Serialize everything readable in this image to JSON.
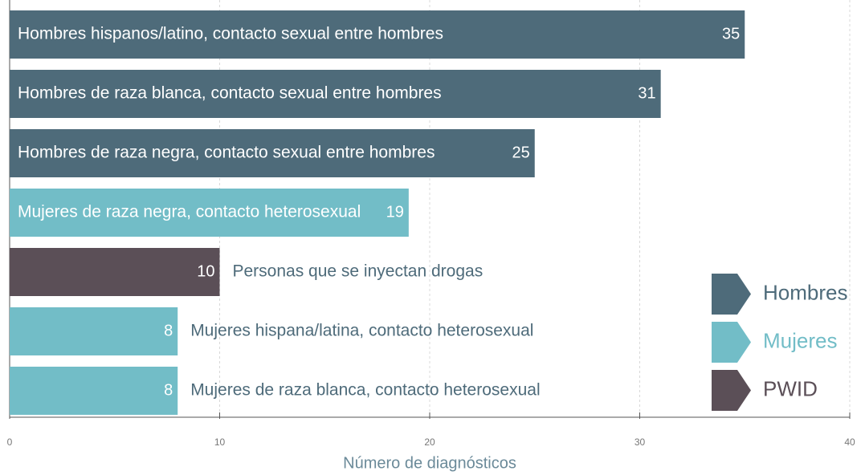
{
  "chart_data": {
    "type": "bar",
    "orientation": "horizontal",
    "categories": [
      "Hombres hispanos/latino, contacto sexual entre hombres",
      "Hombres de raza blanca, contacto sexual entre hombres",
      "Hombres de raza negra, contacto sexual entre hombres",
      "Mujeres de raza negra, contacto heterosexual",
      "Personas que se inyectan drogas",
      "Mujeres hispana/latina, contacto heterosexual",
      "Mujeres de raza blanca, contacto heterosexual"
    ],
    "values": [
      35,
      31,
      25,
      19,
      10,
      8,
      8
    ],
    "groups": [
      "Hombres",
      "Hombres",
      "Hombres",
      "Mujeres",
      "PWID",
      "Mujeres",
      "Mujeres"
    ],
    "legend": [
      {
        "name": "Hombres",
        "color": "#4e6b7a"
      },
      {
        "name": "Mujeres",
        "color": "#72bdc7"
      },
      {
        "name": "PWID",
        "color": "#5b4f57"
      }
    ],
    "xlabel": "Número de diagnósticos",
    "xlim": [
      0,
      40
    ],
    "xticks": [
      0,
      10,
      20,
      30,
      40
    ],
    "grid": true
  }
}
